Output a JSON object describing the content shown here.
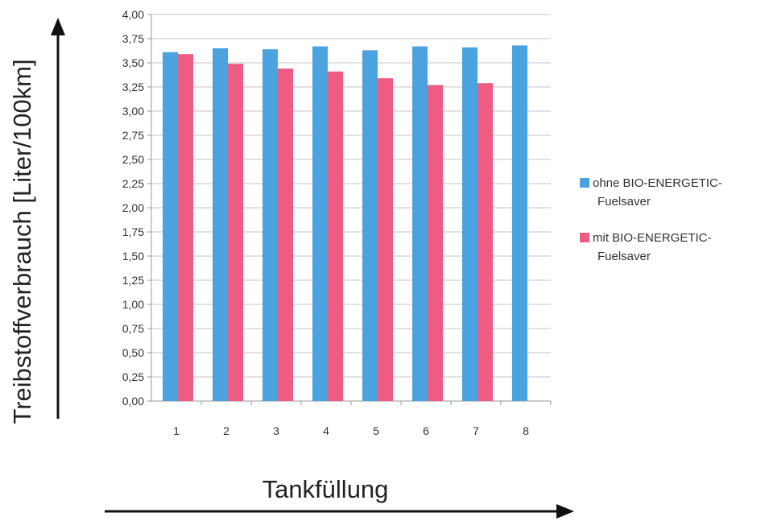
{
  "chart_data": {
    "type": "bar",
    "title": "",
    "xlabel": "Tankfüllung",
    "ylabel": "Treibstoffverbrauch [Liter/100km]",
    "categories": [
      "1",
      "2",
      "3",
      "4",
      "5",
      "6",
      "7",
      "8"
    ],
    "ylim": [
      0,
      4
    ],
    "yticks": [
      "0,00",
      "0,25",
      "0,50",
      "0,75",
      "1,00",
      "1,25",
      "1,50",
      "1,75",
      "2,00",
      "2,25",
      "2,50",
      "2,75",
      "3,00",
      "3,25",
      "3,50",
      "3,75",
      "4,00"
    ],
    "grid": true,
    "legend_position": "right",
    "series": [
      {
        "name": "ohne BIO-ENERGETIC-Fuelsaver",
        "legend_lines": [
          "ohne BIO-ENERGETIC-",
          "Fuelsaver"
        ],
        "color": "#4aa3df",
        "values": [
          3.61,
          3.65,
          3.64,
          3.67,
          3.63,
          3.67,
          3.66,
          3.68
        ]
      },
      {
        "name": "mit BIO-ENERGETIC-Fuelsaver",
        "legend_lines": [
          "mit BIO-ENERGETIC-",
          "Fuelsaver"
        ],
        "color": "#ee5c84",
        "values": [
          3.59,
          3.49,
          3.44,
          3.41,
          3.34,
          3.27,
          3.29,
          null
        ]
      }
    ]
  }
}
